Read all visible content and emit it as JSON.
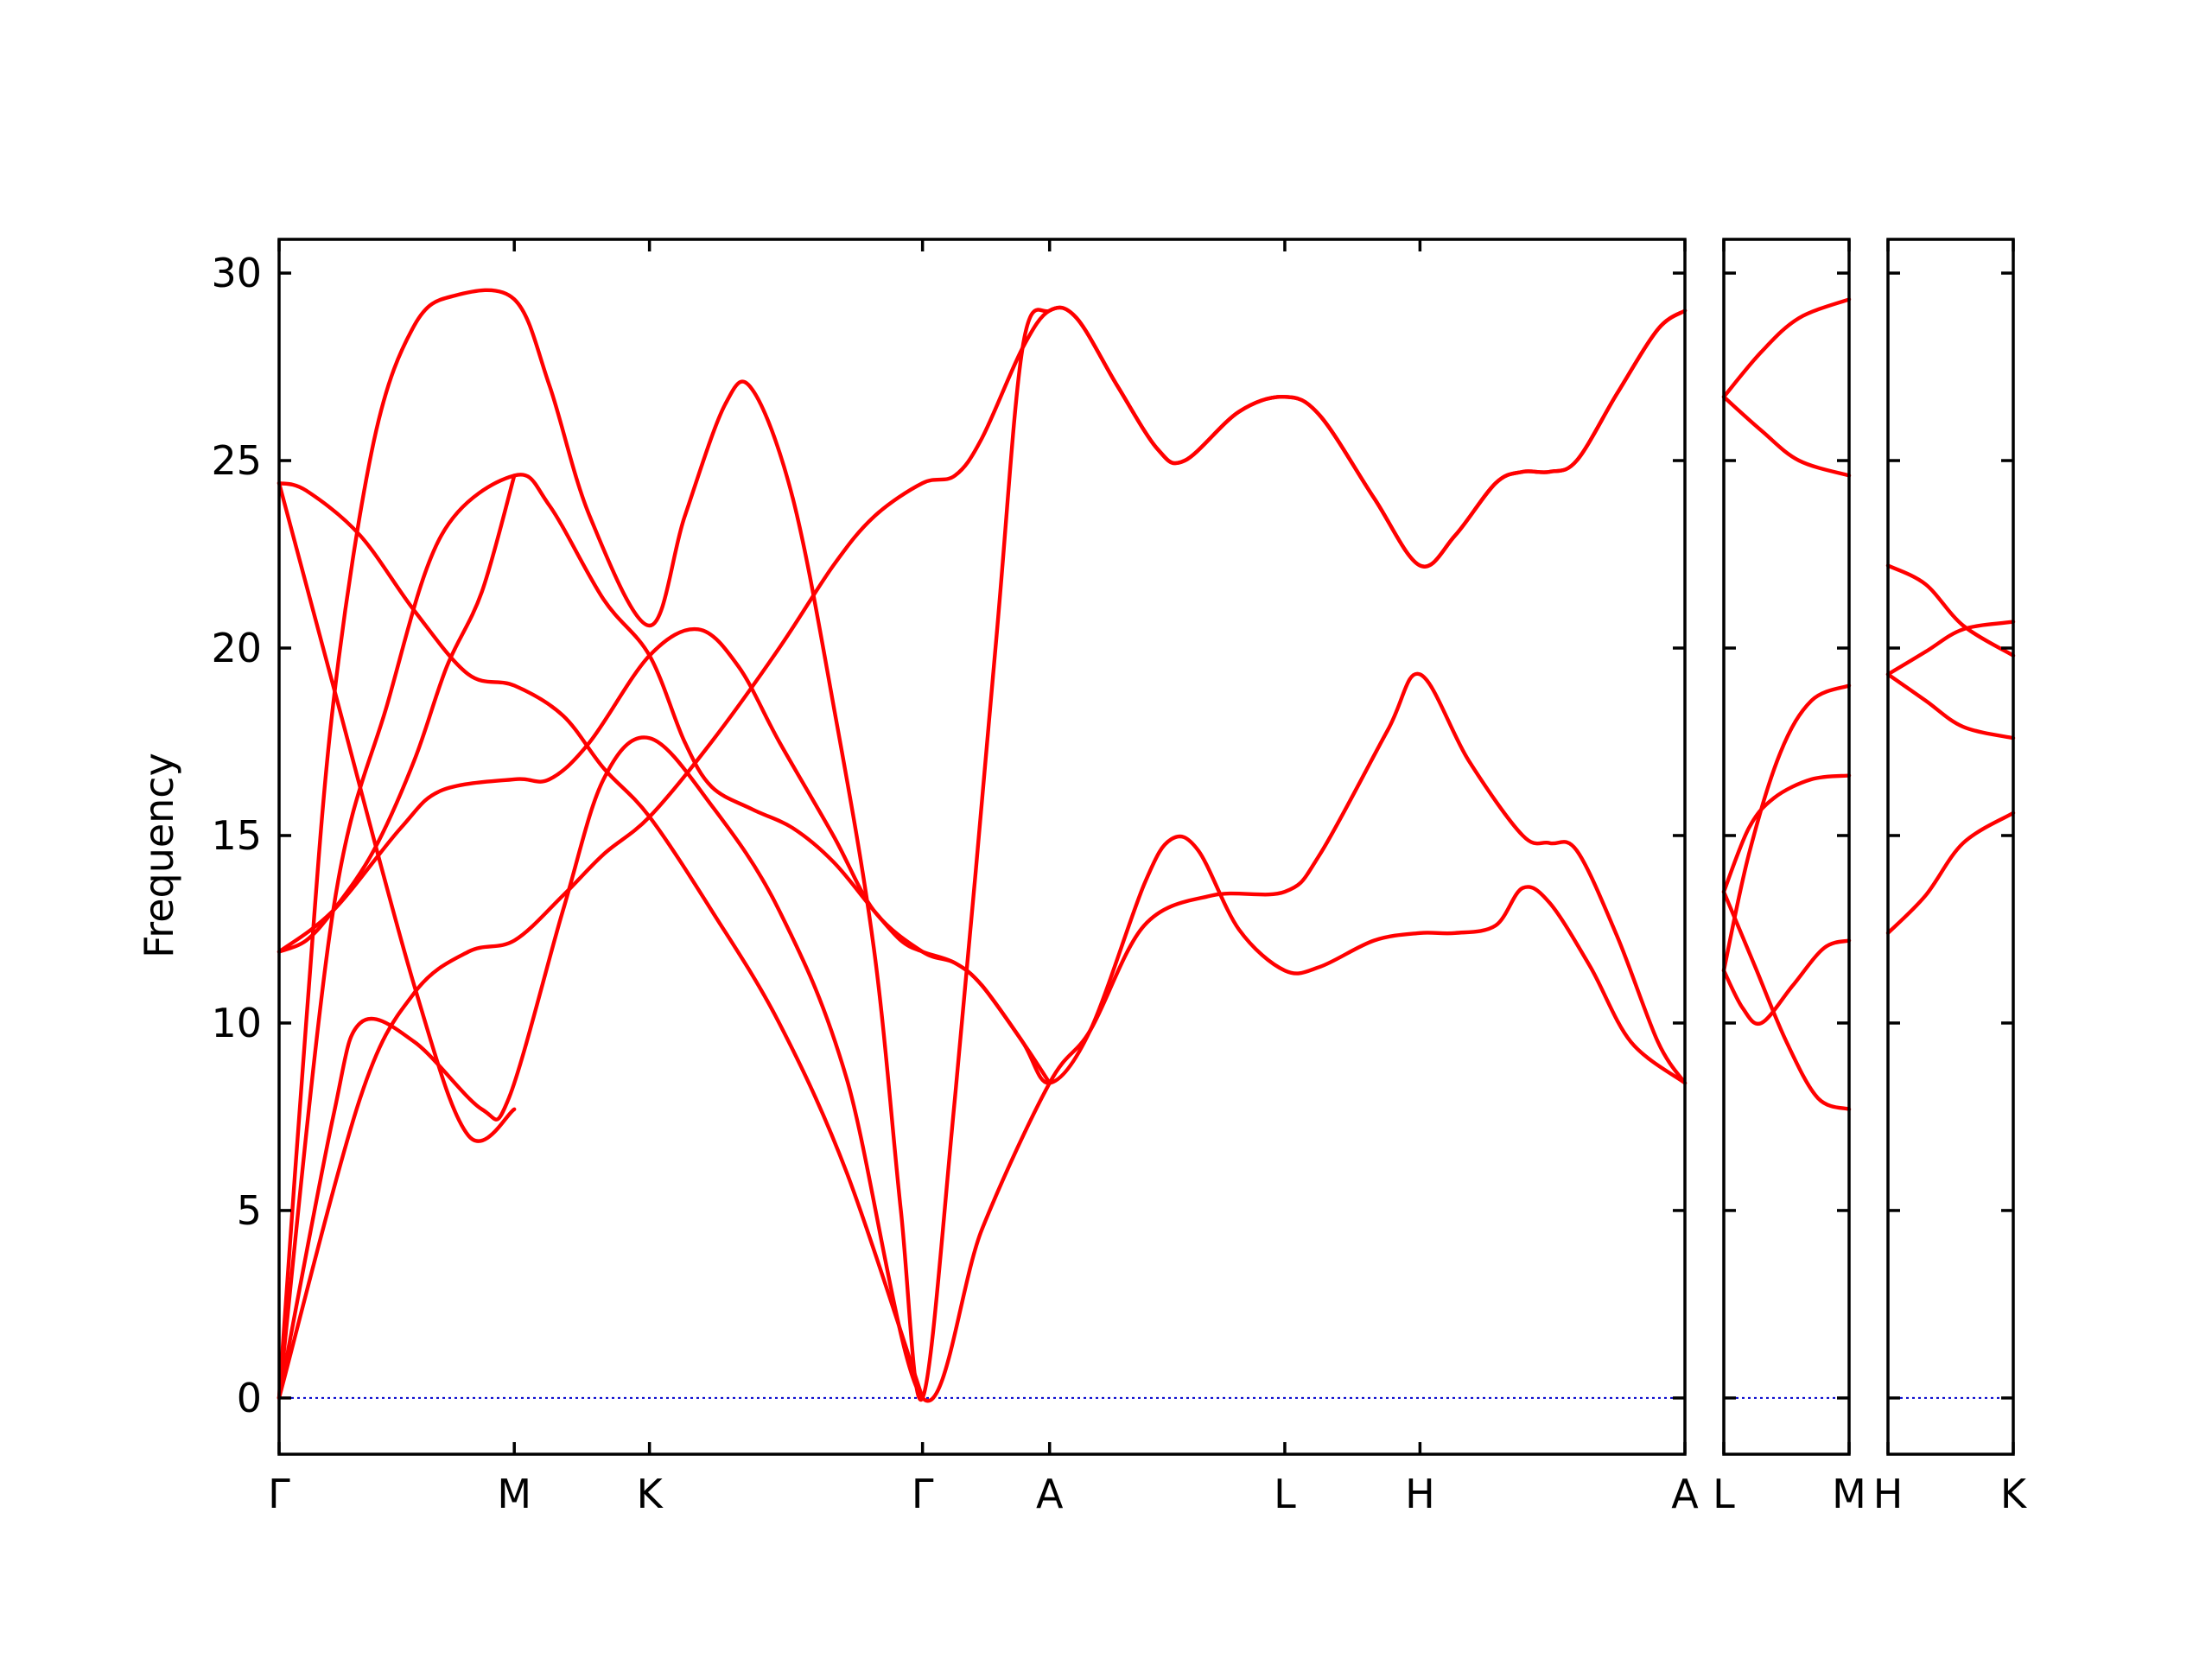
{
  "chart_data": {
    "type": "line",
    "ylabel": "Frequency",
    "ylim": [
      -1.5,
      30.9
    ],
    "yticks": [
      0,
      5,
      10,
      15,
      20,
      25,
      30
    ],
    "colors": {
      "bands": "#ff0000",
      "zero": "#0000cc",
      "frame": "#000000"
    },
    "grid": false,
    "legend": "none",
    "panels": [
      {
        "xlim": [
          0,
          5.2
        ],
        "ticks": [
          {
            "x": 0.0,
            "label": "Γ"
          },
          {
            "x": 0.87,
            "label": "M"
          },
          {
            "x": 1.37,
            "label": "K"
          },
          {
            "x": 2.38,
            "label": "Γ"
          },
          {
            "x": 2.85,
            "label": "A"
          },
          {
            "x": 3.72,
            "label": "L"
          },
          {
            "x": 4.22,
            "label": "H"
          },
          {
            "x": 5.2,
            "label": "A"
          }
        ],
        "series": [
          {
            "points": [
              [
                0,
                0
              ],
              [
                0.2,
                7.5
              ],
              [
                0.3,
                10.0
              ],
              [
                0.5,
                9.5
              ],
              [
                0.75,
                7.7
              ],
              [
                0.85,
                8.0
              ],
              [
                1.05,
                13.0
              ],
              [
                1.2,
                16.5
              ],
              [
                1.37,
                17.6
              ],
              [
                1.6,
                15.8
              ],
              [
                1.85,
                13.0
              ],
              [
                2.1,
                8.5
              ],
              [
                2.38,
                0
              ],
              [
                2.6,
                4.5
              ],
              [
                2.85,
                8.4
              ],
              [
                3.0,
                9.8
              ],
              [
                3.2,
                12.6
              ],
              [
                3.45,
                13.4
              ],
              [
                3.72,
                13.5
              ],
              [
                3.85,
                14.5
              ],
              [
                4.1,
                17.8
              ],
              [
                4.22,
                19.3
              ],
              [
                4.4,
                17.0
              ],
              [
                4.6,
                15.0
              ],
              [
                4.7,
                14.8
              ],
              [
                4.8,
                14.6
              ],
              [
                4.95,
                12.3
              ],
              [
                5.1,
                9.5
              ],
              [
                5.2,
                8.4
              ]
            ]
          },
          {
            "points": [
              [
                0,
                0
              ],
              [
                0.3,
                8.0
              ],
              [
                0.5,
                10.8
              ],
              [
                0.7,
                11.9
              ],
              [
                0.87,
                12.2
              ],
              [
                1.05,
                13.4
              ],
              [
                1.2,
                14.5
              ],
              [
                1.37,
                15.5
              ],
              [
                1.6,
                17.5
              ],
              [
                1.85,
                20.0
              ],
              [
                2.05,
                22.2
              ],
              [
                2.2,
                23.5
              ],
              [
                2.38,
                24.4
              ],
              [
                2.5,
                24.6
              ],
              [
                2.6,
                25.6
              ],
              [
                2.75,
                28.0
              ],
              [
                2.85,
                29.0
              ],
              [
                2.95,
                28.8
              ],
              [
                3.1,
                27.0
              ],
              [
                3.25,
                25.3
              ],
              [
                3.35,
                25.0
              ],
              [
                3.55,
                26.3
              ],
              [
                3.72,
                26.7
              ],
              [
                3.85,
                26.2
              ],
              [
                4.05,
                24.0
              ],
              [
                4.22,
                22.2
              ],
              [
                4.35,
                23.0
              ],
              [
                4.5,
                24.4
              ],
              [
                4.6,
                24.7
              ],
              [
                4.7,
                24.7
              ],
              [
                4.8,
                25.0
              ],
              [
                4.95,
                26.8
              ],
              [
                5.1,
                28.5
              ],
              [
                5.2,
                29.0
              ]
            ]
          },
          {
            "points": [
              [
                0,
                0
              ],
              [
                0.1,
                10.0
              ],
              [
                0.2,
                18.5
              ],
              [
                0.35,
                25.5
              ],
              [
                0.5,
                28.6
              ],
              [
                0.65,
                29.4
              ],
              [
                0.87,
                29.3
              ],
              [
                1.0,
                27.0
              ],
              [
                1.15,
                23.5
              ],
              [
                1.37,
                20.6
              ],
              [
                1.5,
                23.5
              ],
              [
                1.65,
                26.5
              ],
              [
                1.75,
                26.9
              ],
              [
                1.9,
                24.0
              ],
              [
                2.05,
                18.5
              ],
              [
                2.2,
                12.0
              ],
              [
                2.3,
                5.0
              ],
              [
                2.38,
                0
              ],
              [
                2.5,
                8.0
              ],
              [
                2.65,
                20.0
              ],
              [
                2.75,
                28.0
              ],
              [
                2.85,
                29.0
              ],
              [
                2.95,
                28.8
              ],
              [
                3.1,
                27.0
              ],
              [
                3.25,
                25.3
              ],
              [
                3.35,
                25.0
              ],
              [
                3.55,
                26.3
              ],
              [
                3.72,
                26.7
              ],
              [
                3.85,
                26.2
              ],
              [
                4.05,
                24.0
              ],
              [
                4.22,
                22.2
              ],
              [
                4.35,
                23.0
              ],
              [
                4.5,
                24.4
              ],
              [
                4.6,
                24.7
              ],
              [
                4.7,
                24.7
              ],
              [
                4.8,
                25.0
              ],
              [
                4.95,
                26.8
              ],
              [
                5.1,
                28.5
              ],
              [
                5.2,
                29.0
              ]
            ]
          },
          {
            "points": [
              [
                0,
                0
              ],
              [
                0.2,
                13.0
              ],
              [
                0.4,
                18.5
              ],
              [
                0.6,
                23.0
              ],
              [
                0.87,
                24.6
              ],
              [
                1.0,
                23.8
              ],
              [
                1.2,
                21.3
              ],
              [
                1.37,
                19.8
              ],
              [
                1.5,
                17.5
              ],
              [
                1.6,
                16.3
              ],
              [
                1.75,
                15.7
              ],
              [
                1.9,
                15.2
              ],
              [
                2.05,
                14.3
              ],
              [
                2.2,
                13.0
              ],
              [
                2.3,
                12.2
              ],
              [
                2.38,
                11.9
              ],
              [
                2.5,
                11.6
              ],
              [
                2.6,
                11.0
              ],
              [
                2.75,
                9.5
              ],
              [
                2.85,
                8.4
              ],
              [
                3.0,
                9.8
              ],
              [
                3.2,
                13.7
              ],
              [
                3.3,
                14.9
              ],
              [
                3.4,
                14.6
              ],
              [
                3.55,
                12.5
              ],
              [
                3.72,
                11.4
              ],
              [
                3.85,
                11.5
              ],
              [
                4.05,
                12.2
              ],
              [
                4.22,
                12.4
              ],
              [
                4.35,
                12.4
              ],
              [
                4.5,
                12.6
              ],
              [
                4.6,
                13.6
              ],
              [
                4.7,
                13.2
              ],
              [
                4.85,
                11.5
              ],
              [
                5.0,
                9.5
              ],
              [
                5.2,
                8.4
              ]
            ]
          },
          {
            "points": [
              [
                0,
                11.9
              ],
              [
                0.2,
                13.0
              ],
              [
                0.45,
                15.2
              ],
              [
                0.6,
                16.2
              ],
              [
                0.87,
                16.5
              ],
              [
                1.0,
                16.5
              ],
              [
                1.15,
                17.5
              ],
              [
                1.37,
                19.8
              ],
              [
                1.55,
                20.5
              ],
              [
                1.7,
                19.5
              ],
              [
                1.85,
                17.5
              ],
              [
                2.05,
                15.0
              ],
              [
                2.2,
                13.0
              ],
              [
                2.38,
                11.9
              ],
              [
                2.5,
                11.6
              ],
              [
                2.6,
                11.0
              ],
              [
                2.75,
                9.5
              ],
              [
                2.85,
                8.4
              ]
            ]
          },
          {
            "points": [
              [
                0,
                24.4
              ],
              [
                0.1,
                24.2
              ],
              [
                0.3,
                23.0
              ],
              [
                0.5,
                21.0
              ],
              [
                0.7,
                19.3
              ],
              [
                0.87,
                19.0
              ],
              [
                1.05,
                18.2
              ],
              [
                1.2,
                16.8
              ],
              [
                1.37,
                15.5
              ],
              [
                1.6,
                13.0
              ],
              [
                1.85,
                10.0
              ],
              [
                2.1,
                6.0
              ],
              [
                2.38,
                0
              ]
            ]
          },
          {
            "points": [
              [
                0,
                11.9
              ],
              [
                0.1,
                12.2
              ],
              [
                0.2,
                13.0
              ],
              [
                0.35,
                14.6
              ],
              [
                0.5,
                17.0
              ],
              [
                0.62,
                19.5
              ],
              [
                0.75,
                21.5
              ],
              [
                0.87,
                24.6
              ]
            ]
          },
          {
            "points": [
              [
                0,
                24.4
              ],
              [
                0.2,
                19.0
              ],
              [
                0.5,
                11.0
              ],
              [
                0.7,
                7.0
              ],
              [
                0.87,
                7.7
              ]
            ]
          }
        ]
      },
      {
        "xlim": [
          0,
          1.0
        ],
        "ticks": [
          {
            "x": 0.0,
            "label": "L"
          },
          {
            "x": 1.0,
            "label": "M"
          }
        ],
        "series": [
          {
            "points": [
              [
                0,
                26.7
              ],
              [
                0.3,
                27.9
              ],
              [
                0.6,
                28.8
              ],
              [
                1.0,
                29.3
              ]
            ]
          },
          {
            "points": [
              [
                0,
                26.7
              ],
              [
                0.3,
                25.8
              ],
              [
                0.6,
                25.0
              ],
              [
                1.0,
                24.6
              ]
            ]
          },
          {
            "points": [
              [
                0,
                13.5
              ],
              [
                0.2,
                15.2
              ],
              [
                0.4,
                16.0
              ],
              [
                0.7,
                16.5
              ],
              [
                1.0,
                16.6
              ]
            ]
          },
          {
            "points": [
              [
                0,
                11.4
              ],
              [
                0.2,
                14.5
              ],
              [
                0.45,
                17.2
              ],
              [
                0.7,
                18.6
              ],
              [
                1.0,
                19.0
              ]
            ]
          },
          {
            "points": [
              [
                0,
                11.4
              ],
              [
                0.15,
                10.4
              ],
              [
                0.3,
                10.0
              ],
              [
                0.55,
                11.0
              ],
              [
                0.8,
                12.0
              ],
              [
                1.0,
                12.2
              ]
            ]
          },
          {
            "points": [
              [
                0,
                13.5
              ],
              [
                0.25,
                11.5
              ],
              [
                0.5,
                9.5
              ],
              [
                0.75,
                8.0
              ],
              [
                1.0,
                7.7
              ]
            ]
          }
        ]
      },
      {
        "xlim": [
          0,
          1.0
        ],
        "ticks": [
          {
            "x": 0.0,
            "label": "H"
          },
          {
            "x": 1.0,
            "label": "K"
          }
        ],
        "series": [
          {
            "points": [
              [
                0,
                22.2
              ],
              [
                0.3,
                21.7
              ],
              [
                0.6,
                20.6
              ],
              [
                1.0,
                19.8
              ]
            ]
          },
          {
            "points": [
              [
                0,
                19.3
              ],
              [
                0.3,
                19.9
              ],
              [
                0.6,
                20.5
              ],
              [
                1.0,
                20.7
              ]
            ]
          },
          {
            "points": [
              [
                0,
                19.3
              ],
              [
                0.3,
                18.6
              ],
              [
                0.6,
                17.9
              ],
              [
                1.0,
                17.6
              ]
            ]
          },
          {
            "points": [
              [
                0,
                12.4
              ],
              [
                0.3,
                13.4
              ],
              [
                0.6,
                14.8
              ],
              [
                1.0,
                15.6
              ]
            ]
          }
        ]
      }
    ]
  }
}
